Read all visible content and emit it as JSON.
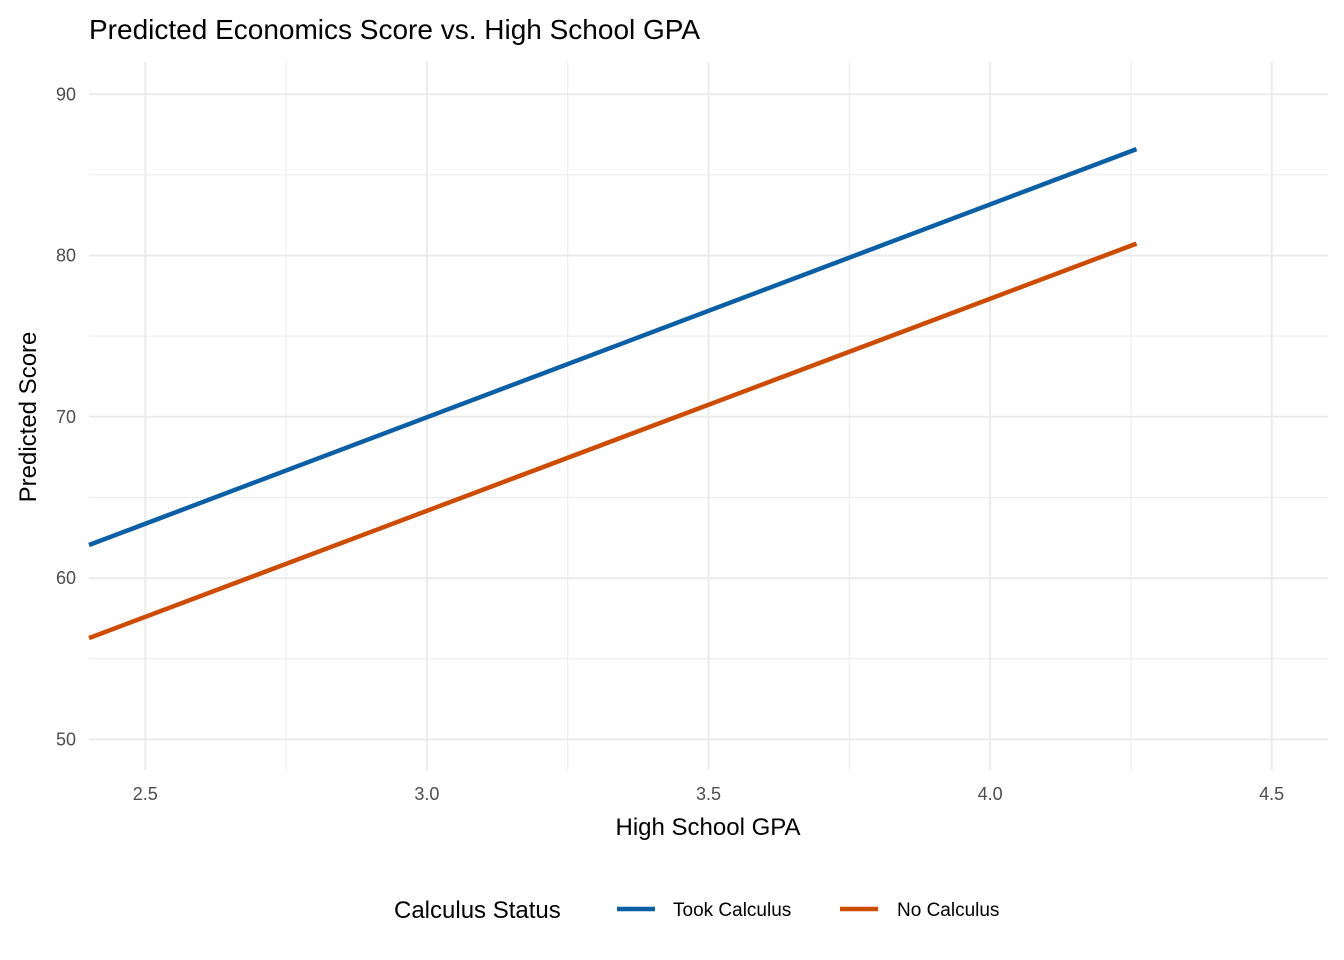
{
  "chart_data": {
    "type": "line",
    "title": "Predicted Economics Score vs. High School GPA",
    "xlabel": "High School GPA",
    "ylabel": "Predicted Score",
    "xlim": [
      2.4,
      4.6
    ],
    "ylim": [
      48.1,
      92.0
    ],
    "xticks": [
      2.5,
      3.0,
      3.5,
      4.0,
      4.5
    ],
    "xtick_labels": [
      "2.5",
      "3.0",
      "3.5",
      "4.0",
      "4.5"
    ],
    "yticks": [
      50,
      60,
      70,
      80,
      90
    ],
    "ytick_labels": [
      "50",
      "60",
      "70",
      "80",
      "90"
    ],
    "grid": true,
    "legend": {
      "title": "Calculus Status",
      "position": "bottom"
    },
    "series": [
      {
        "name": "Took Calculus",
        "color": "#0a5fa5",
        "x": [
          2.4,
          4.26
        ],
        "y": [
          62.05,
          86.6
        ]
      },
      {
        "name": "No Calculus",
        "color": "#cc4c02",
        "x": [
          2.4,
          4.26
        ],
        "y": [
          56.28,
          80.74
        ]
      }
    ]
  }
}
